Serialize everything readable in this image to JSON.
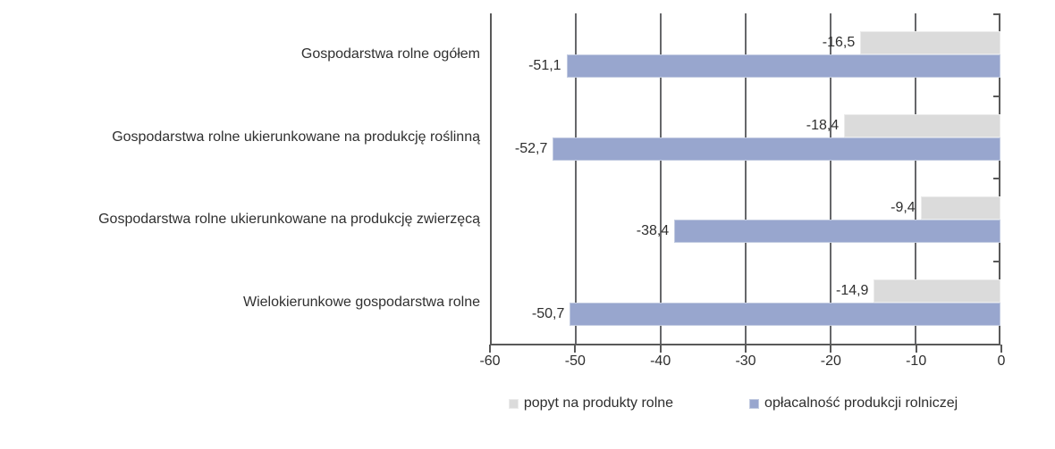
{
  "chart_data": {
    "type": "bar",
    "orientation": "horizontal",
    "categories": [
      "Gospodarstwa rolne ogółem",
      "Gospodarstwa rolne ukierunkowane na produkcję roślinną",
      "Gospodarstwa rolne ukierunkowane na produkcję zwierzęcą",
      "Wielokierunkowe gospodarstwa rolne"
    ],
    "series": [
      {
        "key": "popyt",
        "name": "popyt na produkty rolne",
        "color": "#dbdbdb",
        "border_color": "#ebebeb",
        "values": [
          -16.5,
          -18.4,
          -9.4,
          -14.9
        ],
        "value_labels": [
          "-16,5",
          "-18,4",
          "-9,4",
          "-14,9"
        ]
      },
      {
        "key": "oplacalnosc",
        "name": "opłacalność produkcji rolniczej",
        "color": "#98a6ce",
        "border_color": "#c2cbe1",
        "values": [
          -51.1,
          -52.7,
          -38.4,
          -50.7
        ],
        "value_labels": [
          "-51,1",
          "-52,7",
          "-38,4",
          "-50,7"
        ]
      }
    ],
    "xlim": [
      -60,
      0
    ],
    "x_ticks": [
      "-60",
      "-50",
      "-40",
      "-30",
      "-20",
      "-10",
      "0"
    ],
    "grid": "vertical",
    "legend_position": "bottom"
  },
  "colors": {
    "axis": "#595959",
    "gridline": "#66676a",
    "text": "#2e2e2e",
    "background": "#ffffff"
  }
}
